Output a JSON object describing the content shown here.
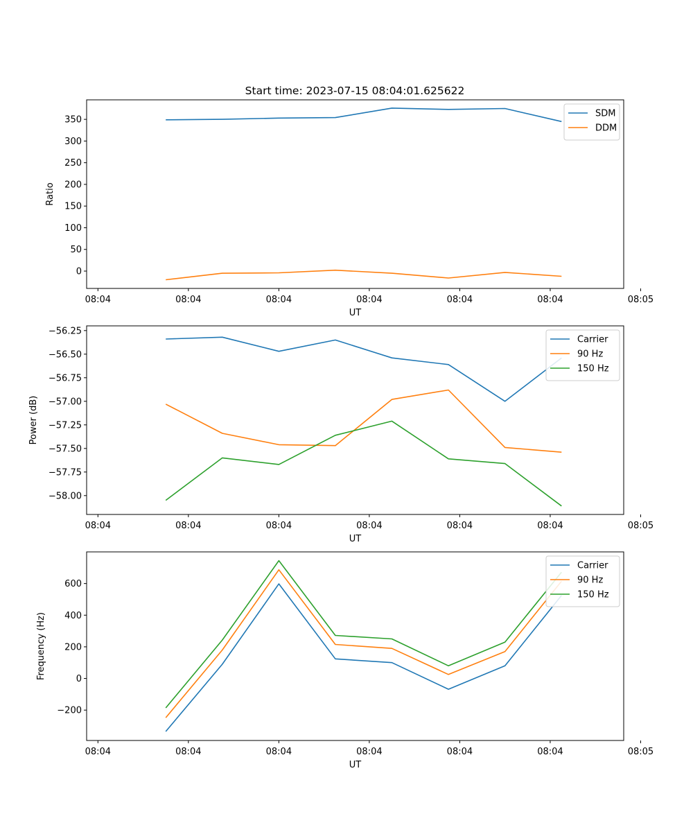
{
  "title": "Start time: 2023-07-15 08:04:01.625622",
  "colors": {
    "blue": "#1f77b4",
    "orange": "#ff7f0e",
    "green": "#2ca02c"
  },
  "chart_data": [
    {
      "type": "line",
      "xlabel": "UT",
      "ylabel": "Ratio",
      "x": [
        0.75,
        1.25,
        1.75,
        2.25,
        2.75,
        3.25,
        3.75,
        4.25
      ],
      "xlim": [
        0.05,
        4.8
      ],
      "x_ticks": [
        0.15,
        0.95,
        1.75,
        2.55,
        3.35,
        4.15,
        4.95
      ],
      "x_tick_labels": [
        "08:04",
        "08:04",
        "08:04",
        "08:04",
        "08:04",
        "08:04",
        "08:05"
      ],
      "ylim": [
        -40,
        395
      ],
      "y_ticks": [
        0,
        50,
        100,
        150,
        200,
        250,
        300,
        350
      ],
      "y_tick_labels": [
        "0",
        "50",
        "100",
        "150",
        "200",
        "250",
        "300",
        "350"
      ],
      "legend": "top-right",
      "series": [
        {
          "name": "SDM",
          "color": "#1f77b4",
          "values": [
            349,
            350,
            353,
            354,
            376,
            373,
            375,
            345
          ]
        },
        {
          "name": "DDM",
          "color": "#ff7f0e",
          "values": [
            -20,
            -5,
            -4,
            2,
            -5,
            -16,
            -3,
            -12
          ]
        }
      ]
    },
    {
      "type": "line",
      "xlabel": "UT",
      "ylabel": "Power (dB)",
      "x": [
        0.75,
        1.25,
        1.75,
        2.25,
        2.75,
        3.25,
        3.75,
        4.25
      ],
      "xlim": [
        0.05,
        4.8
      ],
      "x_ticks": [
        0.15,
        0.95,
        1.75,
        2.55,
        3.35,
        4.15,
        4.95
      ],
      "x_tick_labels": [
        "08:04",
        "08:04",
        "08:04",
        "08:04",
        "08:04",
        "08:04",
        "08:05"
      ],
      "ylim": [
        -58.2,
        -56.2
      ],
      "y_ticks": [
        -56.25,
        -56.5,
        -56.75,
        -57.0,
        -57.25,
        -57.5,
        -57.75,
        -58.0
      ],
      "y_tick_labels": [
        "−56.25",
        "−56.50",
        "−56.75",
        "−57.00",
        "−57.25",
        "−57.50",
        "−57.75",
        "−58.00"
      ],
      "legend": "top-right",
      "series": [
        {
          "name": "Carrier",
          "color": "#1f77b4",
          "values": [
            -56.34,
            -56.32,
            -56.47,
            -56.35,
            -56.54,
            -56.61,
            -57.0,
            -56.54
          ]
        },
        {
          "name": "90 Hz",
          "color": "#ff7f0e",
          "values": [
            -57.03,
            -57.34,
            -57.46,
            -57.47,
            -56.98,
            -56.88,
            -57.49,
            -57.54
          ]
        },
        {
          "name": "150 Hz",
          "color": "#2ca02c",
          "values": [
            -58.05,
            -57.6,
            -57.67,
            -57.36,
            -57.21,
            -57.61,
            -57.66,
            -58.11
          ]
        }
      ]
    },
    {
      "type": "line",
      "xlabel": "UT",
      "ylabel": "Frequency (Hz)",
      "x": [
        0.75,
        1.25,
        1.75,
        2.25,
        2.75,
        3.25,
        3.75,
        4.25
      ],
      "xlim": [
        0.05,
        4.8
      ],
      "x_ticks": [
        0.15,
        0.95,
        1.75,
        2.55,
        3.35,
        4.15,
        4.95
      ],
      "x_tick_labels": [
        "08:04",
        "08:04",
        "08:04",
        "08:04",
        "08:04",
        "08:04",
        "08:05"
      ],
      "ylim": [
        -392,
        800
      ],
      "y_ticks": [
        -200,
        0,
        200,
        400,
        600
      ],
      "y_tick_labels": [
        "−200",
        "0",
        "200",
        "400",
        "600"
      ],
      "legend": "top-right",
      "series": [
        {
          "name": "Carrier",
          "color": "#1f77b4",
          "values": [
            -335,
            90,
            598,
            124,
            100,
            -68,
            80,
            525
          ]
        },
        {
          "name": "90 Hz",
          "color": "#ff7f0e",
          "values": [
            -248,
            180,
            687,
            215,
            190,
            25,
            170,
            615
          ]
        },
        {
          "name": "150 Hz",
          "color": "#2ca02c",
          "values": [
            -186,
            243,
            745,
            272,
            250,
            80,
            230,
            672
          ]
        }
      ]
    }
  ]
}
